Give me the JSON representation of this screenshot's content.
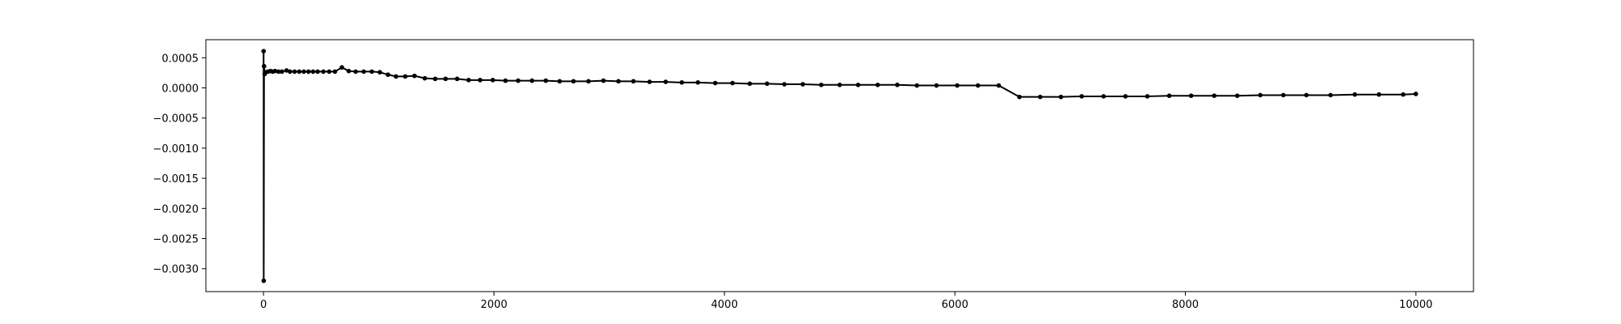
{
  "chart_data": {
    "type": "line",
    "x": [
      1,
      2,
      5,
      10,
      20,
      40,
      60,
      80,
      100,
      130,
      160,
      200,
      230,
      270,
      310,
      350,
      390,
      430,
      470,
      520,
      570,
      620,
      680,
      740,
      800,
      870,
      940,
      1010,
      1080,
      1150,
      1230,
      1310,
      1400,
      1490,
      1580,
      1680,
      1780,
      1880,
      1990,
      2100,
      2210,
      2330,
      2450,
      2570,
      2690,
      2820,
      2950,
      3080,
      3210,
      3350,
      3490,
      3630,
      3770,
      3920,
      4070,
      4220,
      4370,
      4520,
      4680,
      4840,
      5000,
      5160,
      5330,
      5500,
      5670,
      5840,
      6020,
      6200,
      6380,
      6560,
      6740,
      6920,
      7100,
      7290,
      7480,
      7670,
      7860,
      8050,
      8250,
      8450,
      8650,
      8850,
      9050,
      9260,
      9470,
      9680,
      9890,
      10000
    ],
    "series": [
      {
        "color": "#000000",
        "values": [
          0.00061,
          -0.0032,
          0.00036,
          0.00023,
          0.00026,
          0.00027,
          0.00028,
          0.00027,
          0.00028,
          0.00027,
          0.00027,
          0.00029,
          0.00027,
          0.00027,
          0.00027,
          0.00027,
          0.00027,
          0.00027,
          0.00027,
          0.00027,
          0.00027,
          0.00027,
          0.00034,
          0.00028,
          0.00027,
          0.00027,
          0.00027,
          0.00026,
          0.00022,
          0.00019,
          0.00019,
          0.0002,
          0.00016,
          0.00015,
          0.00015,
          0.00015,
          0.00013,
          0.00013,
          0.00013,
          0.00012,
          0.00012,
          0.00012,
          0.00012,
          0.00011,
          0.00011,
          0.00011,
          0.00012,
          0.00011,
          0.00011,
          0.0001,
          0.0001,
          9e-05,
          9e-05,
          8e-05,
          8e-05,
          7e-05,
          7e-05,
          6e-05,
          6e-05,
          5e-05,
          5e-05,
          5e-05,
          5e-05,
          5e-05,
          4e-05,
          4e-05,
          4e-05,
          4e-05,
          4e-05,
          -0.00015,
          -0.00015,
          -0.00015,
          -0.00014,
          -0.00014,
          -0.00014,
          -0.00014,
          -0.00013,
          -0.00013,
          -0.00013,
          -0.00013,
          -0.00012,
          -0.00012,
          -0.00012,
          -0.00012,
          -0.00011,
          -0.00011,
          -0.00011,
          -0.0001
        ]
      }
    ],
    "xlim": [
      -500,
      10500
    ],
    "xticks": [
      0,
      2000,
      4000,
      6000,
      8000,
      10000
    ],
    "ylim": [
      -0.00338,
      0.0008
    ],
    "yticks": [
      {
        "value": 0.0005,
        "label": "0.0005"
      },
      {
        "value": 0,
        "label": "0.0000"
      },
      {
        "value": -0.0005,
        "label": "−0.0005"
      },
      {
        "value": -0.001,
        "label": "−0.0010"
      },
      {
        "value": -0.0015,
        "label": "−0.0015"
      },
      {
        "value": -0.002,
        "label": "−0.0020"
      },
      {
        "value": -0.0025,
        "label": "−0.0025"
      },
      {
        "value": -0.003,
        "label": "−0.0030"
      }
    ],
    "grid": false
  }
}
